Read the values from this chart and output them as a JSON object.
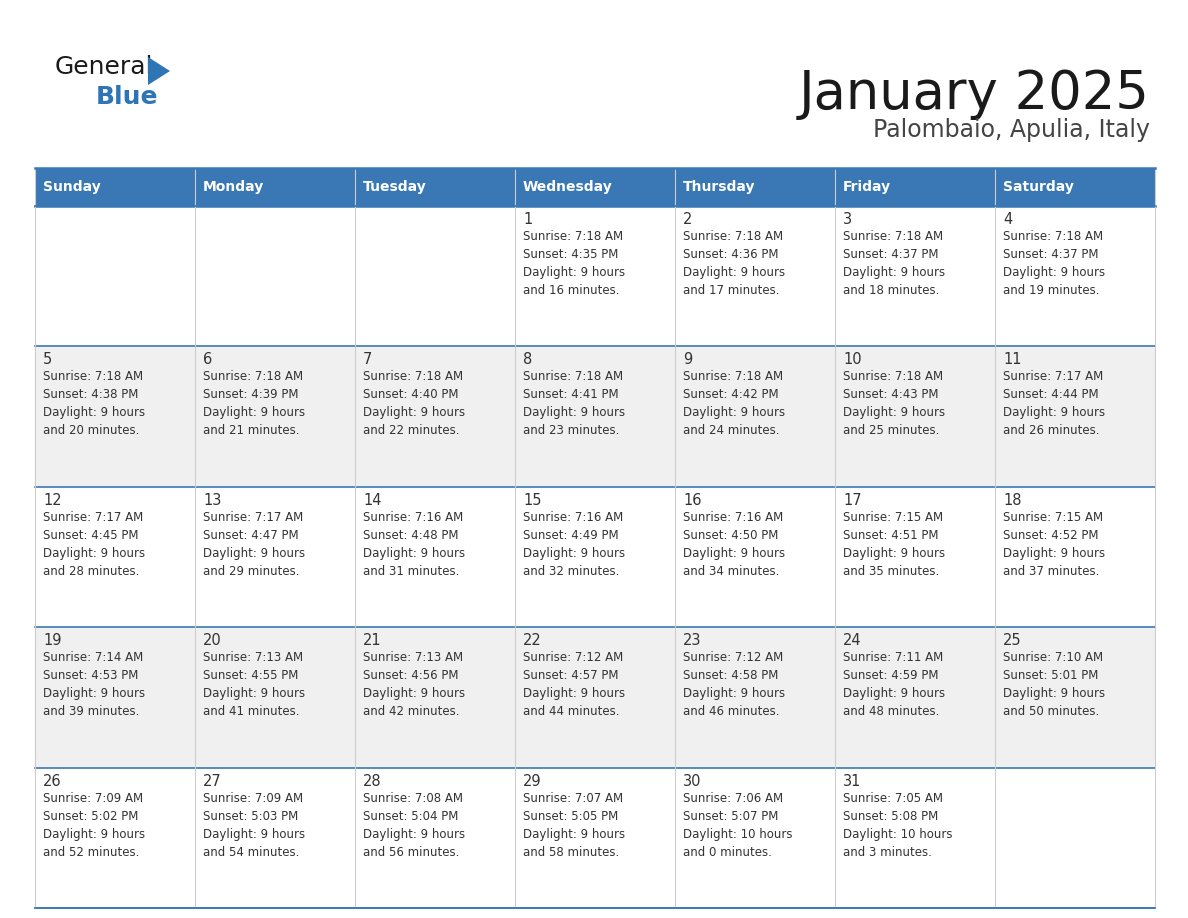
{
  "title": "January 2025",
  "subtitle": "Palombaio, Apulia, Italy",
  "days_of_week": [
    "Sunday",
    "Monday",
    "Tuesday",
    "Wednesday",
    "Thursday",
    "Friday",
    "Saturday"
  ],
  "header_bg": "#3A78B5",
  "header_text": "#FFFFFF",
  "cell_bg_white": "#FFFFFF",
  "cell_bg_gray": "#F0F0F0",
  "row_border_color": "#3A78B5",
  "col_border_color": "#CCCCCC",
  "text_color": "#333333",
  "day_num_color": "#333333",
  "logo_general_color": "#1A1A1A",
  "logo_blue_color": "#2E75B6",
  "title_color": "#1A1A1A",
  "subtitle_color": "#444444",
  "weeks": [
    [
      {
        "day": null,
        "info": null
      },
      {
        "day": null,
        "info": null
      },
      {
        "day": null,
        "info": null
      },
      {
        "day": 1,
        "info": "Sunrise: 7:18 AM\nSunset: 4:35 PM\nDaylight: 9 hours\nand 16 minutes."
      },
      {
        "day": 2,
        "info": "Sunrise: 7:18 AM\nSunset: 4:36 PM\nDaylight: 9 hours\nand 17 minutes."
      },
      {
        "day": 3,
        "info": "Sunrise: 7:18 AM\nSunset: 4:37 PM\nDaylight: 9 hours\nand 18 minutes."
      },
      {
        "day": 4,
        "info": "Sunrise: 7:18 AM\nSunset: 4:37 PM\nDaylight: 9 hours\nand 19 minutes."
      }
    ],
    [
      {
        "day": 5,
        "info": "Sunrise: 7:18 AM\nSunset: 4:38 PM\nDaylight: 9 hours\nand 20 minutes."
      },
      {
        "day": 6,
        "info": "Sunrise: 7:18 AM\nSunset: 4:39 PM\nDaylight: 9 hours\nand 21 minutes."
      },
      {
        "day": 7,
        "info": "Sunrise: 7:18 AM\nSunset: 4:40 PM\nDaylight: 9 hours\nand 22 minutes."
      },
      {
        "day": 8,
        "info": "Sunrise: 7:18 AM\nSunset: 4:41 PM\nDaylight: 9 hours\nand 23 minutes."
      },
      {
        "day": 9,
        "info": "Sunrise: 7:18 AM\nSunset: 4:42 PM\nDaylight: 9 hours\nand 24 minutes."
      },
      {
        "day": 10,
        "info": "Sunrise: 7:18 AM\nSunset: 4:43 PM\nDaylight: 9 hours\nand 25 minutes."
      },
      {
        "day": 11,
        "info": "Sunrise: 7:17 AM\nSunset: 4:44 PM\nDaylight: 9 hours\nand 26 minutes."
      }
    ],
    [
      {
        "day": 12,
        "info": "Sunrise: 7:17 AM\nSunset: 4:45 PM\nDaylight: 9 hours\nand 28 minutes."
      },
      {
        "day": 13,
        "info": "Sunrise: 7:17 AM\nSunset: 4:47 PM\nDaylight: 9 hours\nand 29 minutes."
      },
      {
        "day": 14,
        "info": "Sunrise: 7:16 AM\nSunset: 4:48 PM\nDaylight: 9 hours\nand 31 minutes."
      },
      {
        "day": 15,
        "info": "Sunrise: 7:16 AM\nSunset: 4:49 PM\nDaylight: 9 hours\nand 32 minutes."
      },
      {
        "day": 16,
        "info": "Sunrise: 7:16 AM\nSunset: 4:50 PM\nDaylight: 9 hours\nand 34 minutes."
      },
      {
        "day": 17,
        "info": "Sunrise: 7:15 AM\nSunset: 4:51 PM\nDaylight: 9 hours\nand 35 minutes."
      },
      {
        "day": 18,
        "info": "Sunrise: 7:15 AM\nSunset: 4:52 PM\nDaylight: 9 hours\nand 37 minutes."
      }
    ],
    [
      {
        "day": 19,
        "info": "Sunrise: 7:14 AM\nSunset: 4:53 PM\nDaylight: 9 hours\nand 39 minutes."
      },
      {
        "day": 20,
        "info": "Sunrise: 7:13 AM\nSunset: 4:55 PM\nDaylight: 9 hours\nand 41 minutes."
      },
      {
        "day": 21,
        "info": "Sunrise: 7:13 AM\nSunset: 4:56 PM\nDaylight: 9 hours\nand 42 minutes."
      },
      {
        "day": 22,
        "info": "Sunrise: 7:12 AM\nSunset: 4:57 PM\nDaylight: 9 hours\nand 44 minutes."
      },
      {
        "day": 23,
        "info": "Sunrise: 7:12 AM\nSunset: 4:58 PM\nDaylight: 9 hours\nand 46 minutes."
      },
      {
        "day": 24,
        "info": "Sunrise: 7:11 AM\nSunset: 4:59 PM\nDaylight: 9 hours\nand 48 minutes."
      },
      {
        "day": 25,
        "info": "Sunrise: 7:10 AM\nSunset: 5:01 PM\nDaylight: 9 hours\nand 50 minutes."
      }
    ],
    [
      {
        "day": 26,
        "info": "Sunrise: 7:09 AM\nSunset: 5:02 PM\nDaylight: 9 hours\nand 52 minutes."
      },
      {
        "day": 27,
        "info": "Sunrise: 7:09 AM\nSunset: 5:03 PM\nDaylight: 9 hours\nand 54 minutes."
      },
      {
        "day": 28,
        "info": "Sunrise: 7:08 AM\nSunset: 5:04 PM\nDaylight: 9 hours\nand 56 minutes."
      },
      {
        "day": 29,
        "info": "Sunrise: 7:07 AM\nSunset: 5:05 PM\nDaylight: 9 hours\nand 58 minutes."
      },
      {
        "day": 30,
        "info": "Sunrise: 7:06 AM\nSunset: 5:07 PM\nDaylight: 10 hours\nand 0 minutes."
      },
      {
        "day": 31,
        "info": "Sunrise: 7:05 AM\nSunset: 5:08 PM\nDaylight: 10 hours\nand 3 minutes."
      },
      {
        "day": null,
        "info": null
      }
    ]
  ]
}
